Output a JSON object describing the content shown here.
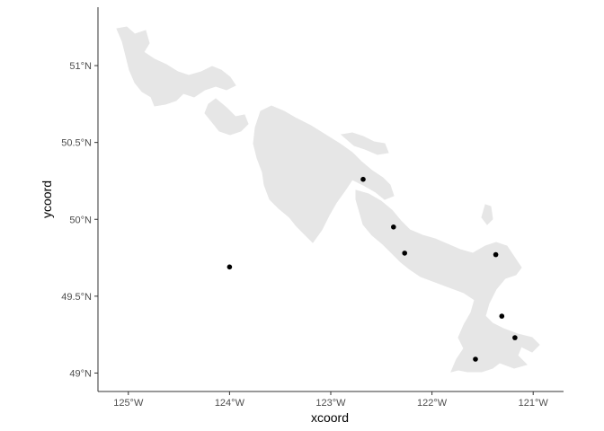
{
  "chart_data": {
    "type": "scatter",
    "title": "",
    "xlabel": "xcoord",
    "ylabel": "ycoord",
    "xlim": [
      -125.3,
      -120.7
    ],
    "ylim": [
      48.88,
      51.38
    ],
    "x_ticks": [
      {
        "value": -125,
        "label": "125°W"
      },
      {
        "value": -124,
        "label": "124°W"
      },
      {
        "value": -123,
        "label": "123°W"
      },
      {
        "value": -122,
        "label": "122°W"
      },
      {
        "value": -121,
        "label": "121°W"
      }
    ],
    "y_ticks": [
      {
        "value": 49.0,
        "label": "49°N"
      },
      {
        "value": 49.5,
        "label": "49.5°N"
      },
      {
        "value": 50.0,
        "label": "50°N"
      },
      {
        "value": 50.5,
        "label": "50.5°N"
      },
      {
        "value": 51.0,
        "label": "51°N"
      }
    ],
    "grid": false,
    "points": [
      {
        "x": -124.0,
        "y": 49.69
      },
      {
        "x": -122.68,
        "y": 50.26
      },
      {
        "x": -122.38,
        "y": 49.95
      },
      {
        "x": -122.27,
        "y": 49.78
      },
      {
        "x": -121.37,
        "y": 49.77
      },
      {
        "x": -121.31,
        "y": 49.37
      },
      {
        "x": -121.18,
        "y": 49.23
      },
      {
        "x": -121.57,
        "y": 49.09
      }
    ],
    "land_fill": "#e6e6e6",
    "point_color": "#000000",
    "axis_color": "#333333"
  }
}
